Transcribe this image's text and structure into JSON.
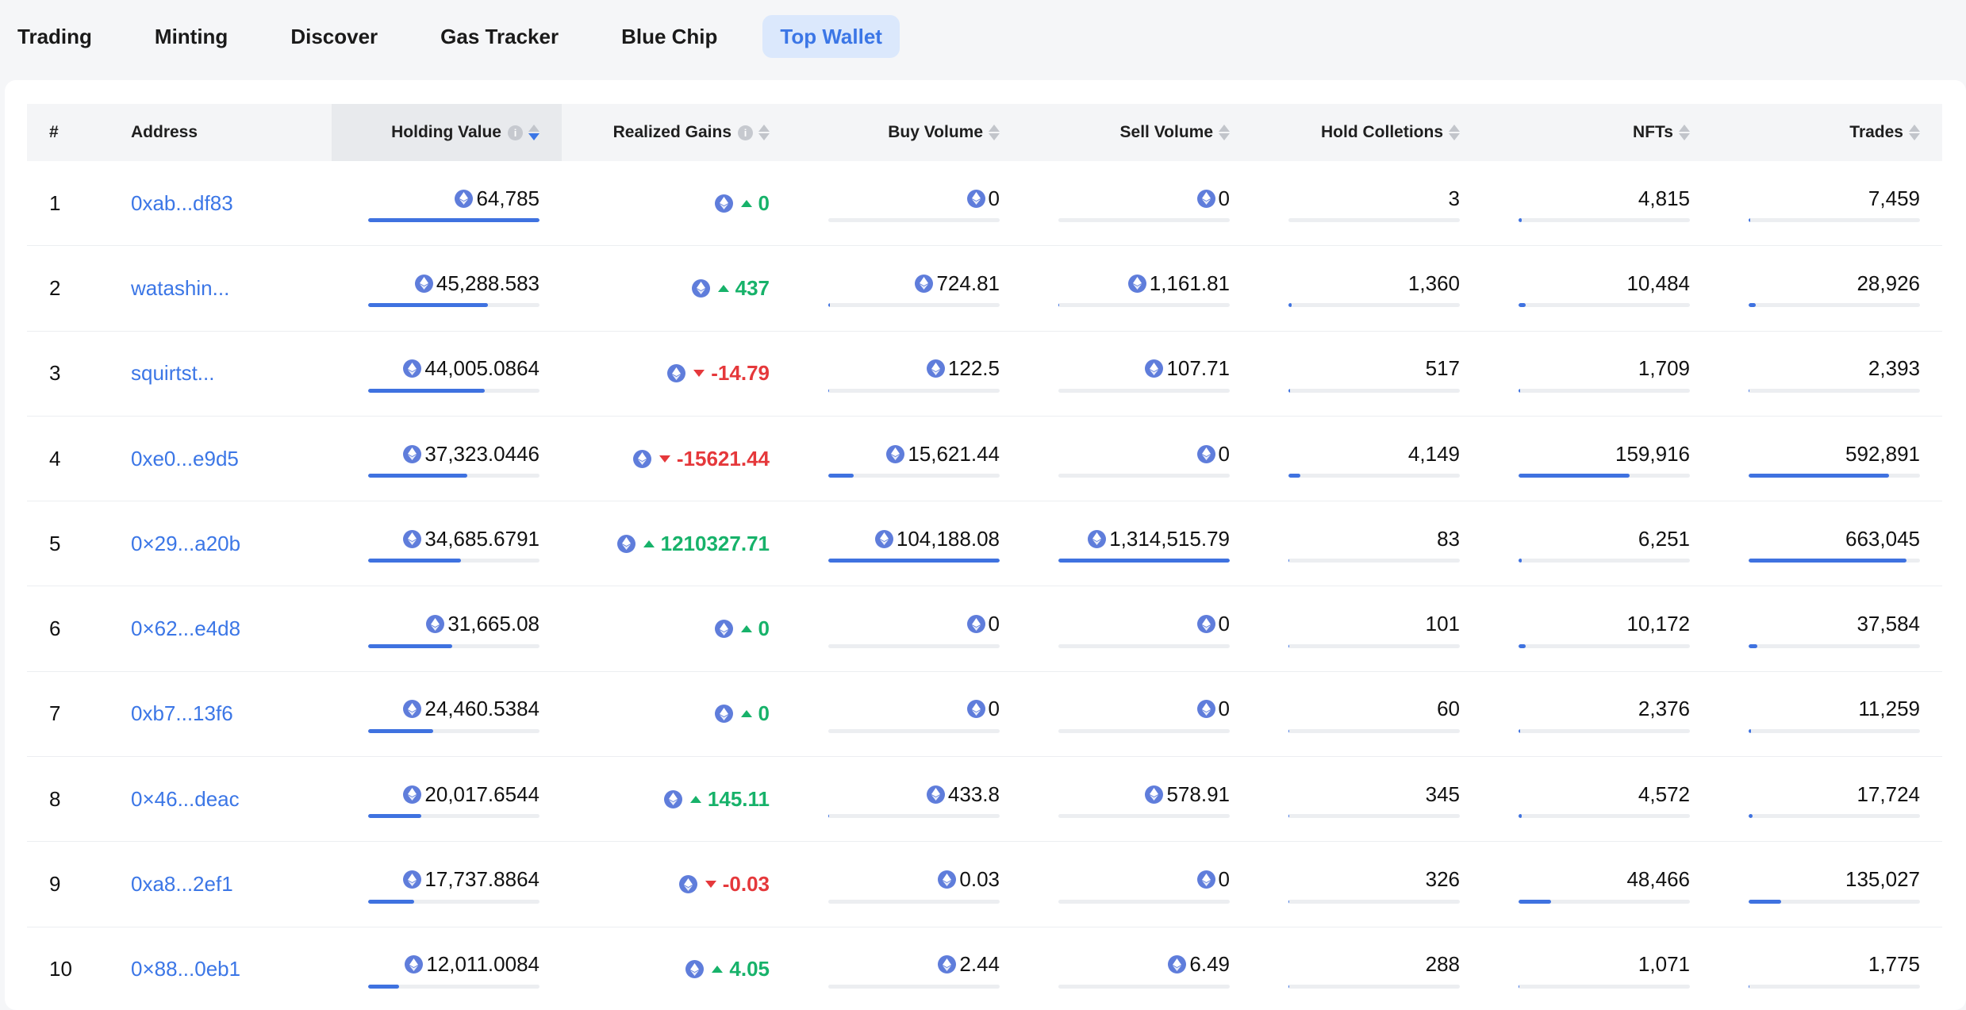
{
  "nav": {
    "tabs": [
      {
        "label": "Trading",
        "active": false
      },
      {
        "label": "Minting",
        "active": false
      },
      {
        "label": "Discover",
        "active": false
      },
      {
        "label": "Gas Tracker",
        "active": false
      },
      {
        "label": "Blue Chip",
        "active": false
      },
      {
        "label": "Top Wallet",
        "active": true
      }
    ]
  },
  "colors": {
    "accent": "#3b76e6",
    "gain_up": "#17b26a",
    "gain_down": "#e5383b",
    "bar": "#3f72e0",
    "eth_icon": "#5f7ddb"
  },
  "table": {
    "headers": {
      "rank": "#",
      "address": "Address",
      "holding_value": "Holding Value",
      "realized_gains": "Realized Gains",
      "buy_volume": "Buy Volume",
      "sell_volume": "Sell Volume",
      "hold_collections": "Hold Colletions",
      "nfts": "NFTs",
      "trades": "Trades"
    },
    "sorted_column": "holding_value",
    "sort_direction": "desc",
    "rows": [
      {
        "rank": "1",
        "address": "0xab...df83",
        "holding": "64,785",
        "holding_pct": 1.0,
        "gain": "0",
        "gain_dir": "up",
        "buy": "0",
        "buy_pct": 0,
        "sell": "0",
        "sell_pct": 0,
        "hold": "3",
        "hold_pct": 0.0,
        "nfts": "4,815",
        "nfts_pct": 0.02,
        "trades": "7,459",
        "trades_pct": 0.01
      },
      {
        "rank": "2",
        "address": "watashin...",
        "holding": "45,288.583",
        "holding_pct": 0.7,
        "gain": "437",
        "gain_dir": "up",
        "buy": "724.81",
        "buy_pct": 0.007,
        "sell": "1,161.81",
        "sell_pct": 0.001,
        "hold": "1,360",
        "hold_pct": 0.02,
        "nfts": "10,484",
        "nfts_pct": 0.04,
        "trades": "28,926",
        "trades_pct": 0.04
      },
      {
        "rank": "3",
        "address": "squirtst...",
        "holding": "44,005.0864",
        "holding_pct": 0.68,
        "gain": "-14.79",
        "gain_dir": "down",
        "buy": "122.5",
        "buy_pct": 0.001,
        "sell": "107.71",
        "sell_pct": 0.0,
        "hold": "517",
        "hold_pct": 0.01,
        "nfts": "1,709",
        "nfts_pct": 0.01,
        "trades": "2,393",
        "trades_pct": 0.004
      },
      {
        "rank": "4",
        "address": "0xe0...e9d5",
        "holding": "37,323.0446",
        "holding_pct": 0.58,
        "gain": "-15621.44",
        "gain_dir": "down",
        "buy": "15,621.44",
        "buy_pct": 0.15,
        "sell": "0",
        "sell_pct": 0,
        "hold": "4,149",
        "hold_pct": 0.07,
        "nfts": "159,916",
        "nfts_pct": 0.65,
        "trades": "592,891",
        "trades_pct": 0.82
      },
      {
        "rank": "5",
        "address": "0×29...a20b",
        "holding": "34,685.6791",
        "holding_pct": 0.54,
        "gain": "1210327.71",
        "gain_dir": "up",
        "buy": "104,188.08",
        "buy_pct": 1.0,
        "sell": "1,314,515.79",
        "sell_pct": 1.0,
        "hold": "83",
        "hold_pct": 0.002,
        "nfts": "6,251",
        "nfts_pct": 0.02,
        "trades": "663,045",
        "trades_pct": 0.92
      },
      {
        "rank": "6",
        "address": "0×62...e4d8",
        "holding": "31,665.08",
        "holding_pct": 0.49,
        "gain": "0",
        "gain_dir": "up",
        "buy": "0",
        "buy_pct": 0,
        "sell": "0",
        "sell_pct": 0,
        "hold": "101",
        "hold_pct": 0.002,
        "nfts": "10,172",
        "nfts_pct": 0.04,
        "trades": "37,584",
        "trades_pct": 0.05
      },
      {
        "rank": "7",
        "address": "0xb7...13f6",
        "holding": "24,460.5384",
        "holding_pct": 0.38,
        "gain": "0",
        "gain_dir": "up",
        "buy": "0",
        "buy_pct": 0,
        "sell": "0",
        "sell_pct": 0,
        "hold": "60",
        "hold_pct": 0.001,
        "nfts": "2,376",
        "nfts_pct": 0.01,
        "trades": "11,259",
        "trades_pct": 0.015
      },
      {
        "rank": "8",
        "address": "0×46...deac",
        "holding": "20,017.6544",
        "holding_pct": 0.31,
        "gain": "145.11",
        "gain_dir": "up",
        "buy": "433.8",
        "buy_pct": 0.004,
        "sell": "578.91",
        "sell_pct": 0.0,
        "hold": "345",
        "hold_pct": 0.006,
        "nfts": "4,572",
        "nfts_pct": 0.02,
        "trades": "17,724",
        "trades_pct": 0.025
      },
      {
        "rank": "9",
        "address": "0xa8...2ef1",
        "holding": "17,737.8864",
        "holding_pct": 0.27,
        "gain": "-0.03",
        "gain_dir": "down",
        "buy": "0.03",
        "buy_pct": 0.0,
        "sell": "0",
        "sell_pct": 0,
        "hold": "326",
        "hold_pct": 0.005,
        "nfts": "48,466",
        "nfts_pct": 0.19,
        "trades": "135,027",
        "trades_pct": 0.19
      },
      {
        "rank": "10",
        "address": "0×88...0eb1",
        "holding": "12,011.0084",
        "holding_pct": 0.18,
        "gain": "4.05",
        "gain_dir": "up",
        "buy": "2.44",
        "buy_pct": 0.0,
        "sell": "6.49",
        "sell_pct": 0.0,
        "hold": "288",
        "hold_pct": 0.005,
        "nfts": "1,071",
        "nfts_pct": 0.004,
        "trades": "1,775",
        "trades_pct": 0.003
      }
    ]
  }
}
